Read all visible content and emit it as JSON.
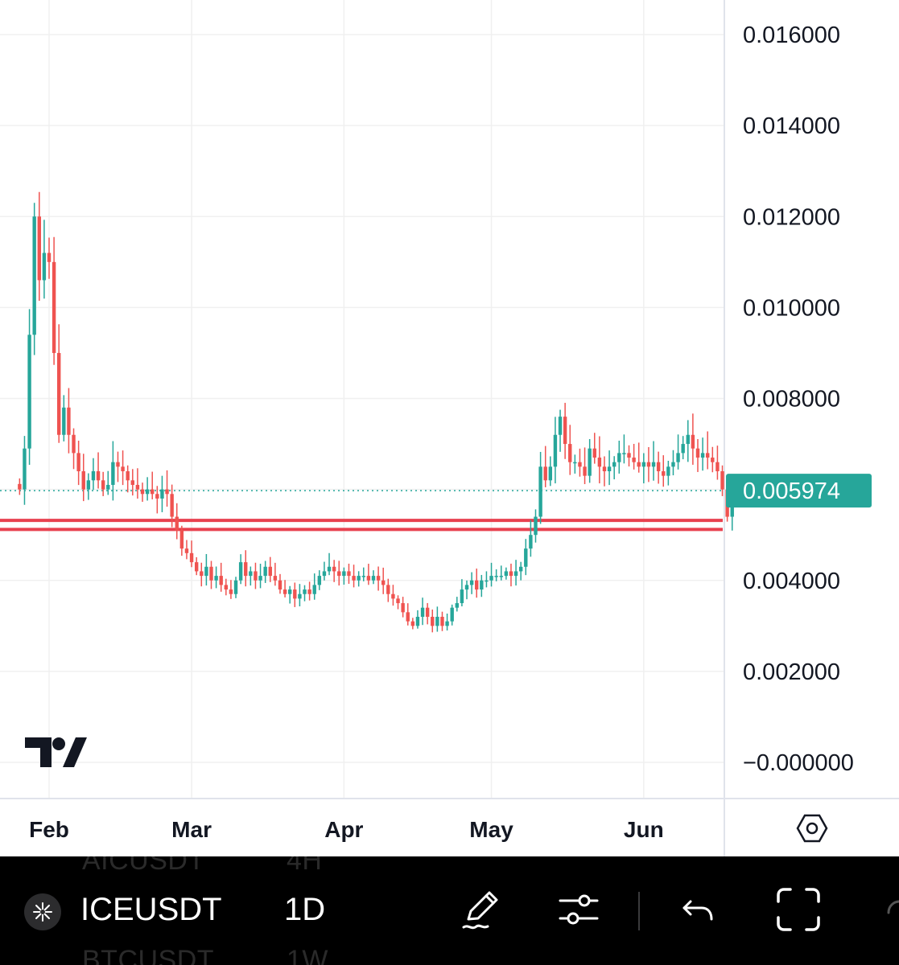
{
  "chart_data": {
    "type": "candlestick",
    "symbol": "ICEUSDT",
    "interval": "1D",
    "ylim": [
      -0.0001,
      0.0166
    ],
    "y_ticks": [
      "0.016000",
      "0.014000",
      "0.012000",
      "0.010000",
      "0.008000",
      "0.004000",
      "0.002000",
      "−0.000000"
    ],
    "y_tick_values": [
      0.016,
      0.014,
      0.012,
      0.01,
      0.008,
      0.004,
      0.002,
      0.0
    ],
    "x_ticks": [
      "Feb",
      "Mar",
      "Apr",
      "May",
      "Jun"
    ],
    "x_tick_dates": [
      "2024-02-01",
      "2024-03-01",
      "2024-04-01",
      "2024-05-01",
      "2024-06-01"
    ],
    "last_price": 0.005974,
    "last_price_label": "0.005974",
    "horizontal_lines": [
      0.00532,
      0.00512
    ],
    "start_date": "2024-01-26",
    "closes": [
      0.006,
      0.0069,
      0.0094,
      0.012,
      0.0106,
      0.0112,
      0.011,
      0.009,
      0.0072,
      0.0078,
      0.0072,
      0.0068,
      0.0064,
      0.006,
      0.0062,
      0.0064,
      0.0062,
      0.006,
      0.0061,
      0.0066,
      0.0065,
      0.0064,
      0.0062,
      0.0061,
      0.006,
      0.0059,
      0.006,
      0.0059,
      0.0058,
      0.006,
      0.0059,
      0.0054,
      0.0051,
      0.0047,
      0.0046,
      0.0044,
      0.0042,
      0.0041,
      0.0043,
      0.004,
      0.0041,
      0.0039,
      0.0038,
      0.0037,
      0.004,
      0.0044,
      0.0041,
      0.0042,
      0.004,
      0.0041,
      0.0043,
      0.0041,
      0.004,
      0.0038,
      0.0037,
      0.0038,
      0.0036,
      0.0037,
      0.0038,
      0.0037,
      0.0039,
      0.0041,
      0.0042,
      0.0043,
      0.0042,
      0.0041,
      0.0042,
      0.0041,
      0.004,
      0.0041,
      0.0041,
      0.004,
      0.0041,
      0.004,
      0.0039,
      0.0037,
      0.0036,
      0.0035,
      0.0033,
      0.0031,
      0.003,
      0.0032,
      0.0034,
      0.0032,
      0.003,
      0.0032,
      0.003,
      0.0031,
      0.0034,
      0.0035,
      0.0038,
      0.0039,
      0.004,
      0.0038,
      0.004,
      0.004,
      0.0041,
      0.0041,
      0.0041,
      0.0042,
      0.0041,
      0.0042,
      0.0043,
      0.0047,
      0.005,
      0.0054,
      0.0065,
      0.0062,
      0.0065,
      0.0072,
      0.0076,
      0.007,
      0.0066,
      0.0066,
      0.0065,
      0.0063,
      0.0069,
      0.0067,
      0.0065,
      0.0064,
      0.0065,
      0.0066,
      0.0068,
      0.0068,
      0.0067,
      0.0066,
      0.0065,
      0.0066,
      0.0065,
      0.0066,
      0.0064,
      0.0063,
      0.0065,
      0.0066,
      0.0068,
      0.007,
      0.0072,
      0.0069,
      0.0067,
      0.0068,
      0.0067,
      0.0066,
      0.0064,
      0.006,
      0.0054,
      0.00597
    ]
  },
  "axis": {
    "settings_icon": "gear-hexagon-icon"
  },
  "toolbar": {
    "symbol": "ICEUSDT",
    "interval": "1D",
    "ghost_above_symbol": "AICUSDT",
    "ghost_above_interval": "4H",
    "ghost_below_symbol": "BTCUSDT",
    "ghost_below_interval": "1W",
    "icons": [
      "star-icon",
      "pen-icon",
      "sliders-icon",
      "undo-icon",
      "fullscreen-icon"
    ]
  },
  "colors": {
    "up": "#26a69a",
    "down": "#ef5350",
    "hline": "#e8414f",
    "grid": "#f0f0f0",
    "axis_text": "#131722",
    "price_label_bg": "#26a69a"
  }
}
